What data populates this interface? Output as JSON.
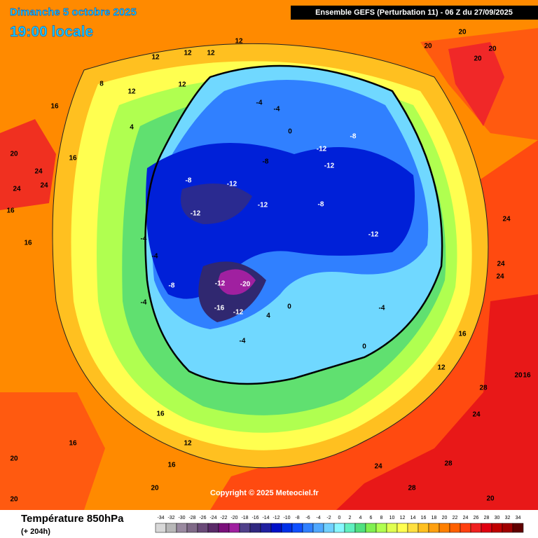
{
  "header": {
    "date": "Dimanche 5 octobre 2025",
    "time": "19:00 locale",
    "run": "Ensemble GEFS  (Perturbation 11)  -  06 Z du 27/09/2025"
  },
  "footer": {
    "variable": "Température 850hPa",
    "lead": "(+ 204h)",
    "copyright": "Copyright © 2025 Meteociel.fr"
  },
  "legend": {
    "values": [
      -34,
      -32,
      -30,
      -28,
      -26,
      -24,
      -22,
      -20,
      -18,
      -16,
      -14,
      -12,
      -10,
      -8,
      -6,
      -4,
      -2,
      0,
      2,
      4,
      6,
      8,
      10,
      12,
      14,
      16,
      18,
      20,
      22,
      24,
      26,
      28,
      30,
      32,
      34
    ],
    "colors": [
      "#d8d8d8",
      "#b8b8b8",
      "#9a8aa0",
      "#806a88",
      "#6a4a78",
      "#5a2a68",
      "#7a107a",
      "#a020a0",
      "#50408a",
      "#302880",
      "#2020a0",
      "#0010c8",
      "#0030e8",
      "#1050ff",
      "#3080ff",
      "#50a8ff",
      "#70d0ff",
      "#88f8ff",
      "#60f0c0",
      "#50e080",
      "#80f050",
      "#b0ff50",
      "#e0ff50",
      "#ffff50",
      "#ffe040",
      "#ffc020",
      "#ffa010",
      "#ff8000",
      "#ff6000",
      "#ff4010",
      "#f02020",
      "#e00010",
      "#c00000",
      "#a00000",
      "#600000"
    ]
  },
  "map": {
    "labels": [
      20,
      20,
      20,
      20,
      12,
      12,
      12,
      12,
      12,
      8,
      12,
      16,
      4,
      -4,
      -4,
      0,
      -12,
      -8,
      -12,
      -8,
      -8,
      -12,
      -12,
      -12,
      -8,
      -12,
      -12,
      -20,
      -16,
      -12,
      -8,
      -4,
      -4,
      -4,
      -4,
      4,
      0,
      0,
      -4,
      12,
      16,
      24,
      24,
      24,
      28,
      24,
      20,
      16,
      24,
      28,
      28,
      20,
      20,
      20,
      20,
      16,
      12,
      16,
      16,
      20,
      24,
      24,
      24,
      16,
      16,
      16
    ]
  }
}
